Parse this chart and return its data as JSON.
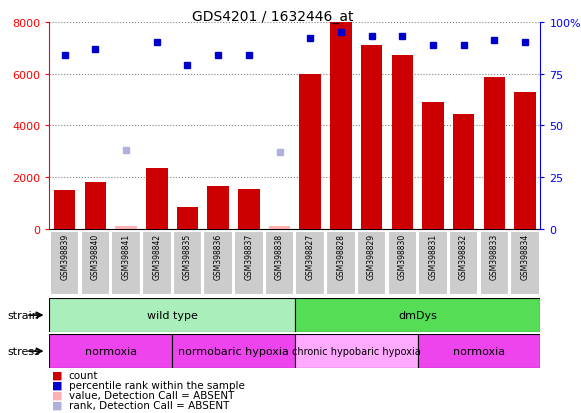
{
  "title": "GDS4201 / 1632446_at",
  "samples": [
    "GSM398839",
    "GSM398840",
    "GSM398841",
    "GSM398842",
    "GSM398835",
    "GSM398836",
    "GSM398837",
    "GSM398838",
    "GSM398827",
    "GSM398828",
    "GSM398829",
    "GSM398830",
    "GSM398831",
    "GSM398832",
    "GSM398833",
    "GSM398834"
  ],
  "counts": [
    1500,
    1800,
    100,
    2350,
    850,
    1650,
    1550,
    100,
    6000,
    8000,
    7100,
    6700,
    4900,
    4450,
    5850,
    5300
  ],
  "percentile_ranks": [
    84,
    87,
    null,
    90,
    79,
    84,
    84,
    null,
    92,
    95,
    93,
    93,
    89,
    89,
    91,
    90
  ],
  "absent_counts": [
    null,
    null,
    100,
    null,
    null,
    null,
    null,
    100,
    null,
    null,
    null,
    null,
    null,
    null,
    null,
    null
  ],
  "absent_ranks": [
    null,
    null,
    38,
    null,
    null,
    null,
    null,
    37,
    null,
    null,
    null,
    null,
    null,
    null,
    null,
    null
  ],
  "ylim_left": [
    0,
    8000
  ],
  "ylim_right": [
    0,
    100
  ],
  "yticks_left": [
    0,
    2000,
    4000,
    6000,
    8000
  ],
  "yticks_right": [
    0,
    25,
    50,
    75,
    100
  ],
  "bar_color": "#cc0000",
  "dot_color": "#0000cc",
  "absent_bar_color": "#ffb0b0",
  "absent_dot_color": "#b0b0dd",
  "strain_groups": [
    {
      "label": "wild type",
      "start": 0,
      "end": 8,
      "color": "#aaeebb"
    },
    {
      "label": "dmDys",
      "start": 8,
      "end": 16,
      "color": "#55dd55"
    }
  ],
  "stress_groups": [
    {
      "label": "normoxia",
      "start": 0,
      "end": 4,
      "color": "#ee44ee"
    },
    {
      "label": "normobaric hypoxia",
      "start": 4,
      "end": 8,
      "color": "#ee44ee"
    },
    {
      "label": "chronic hypobaric hypoxia",
      "start": 8,
      "end": 12,
      "color": "#ffaaff"
    },
    {
      "label": "normoxia",
      "start": 12,
      "end": 16,
      "color": "#ee44ee"
    }
  ],
  "legend_items": [
    {
      "color": "#cc0000",
      "label": "count"
    },
    {
      "color": "#0000cc",
      "label": "percentile rank within the sample"
    },
    {
      "color": "#ffb0b0",
      "label": "value, Detection Call = ABSENT"
    },
    {
      "color": "#b0b0dd",
      "label": "rank, Detection Call = ABSENT"
    }
  ]
}
